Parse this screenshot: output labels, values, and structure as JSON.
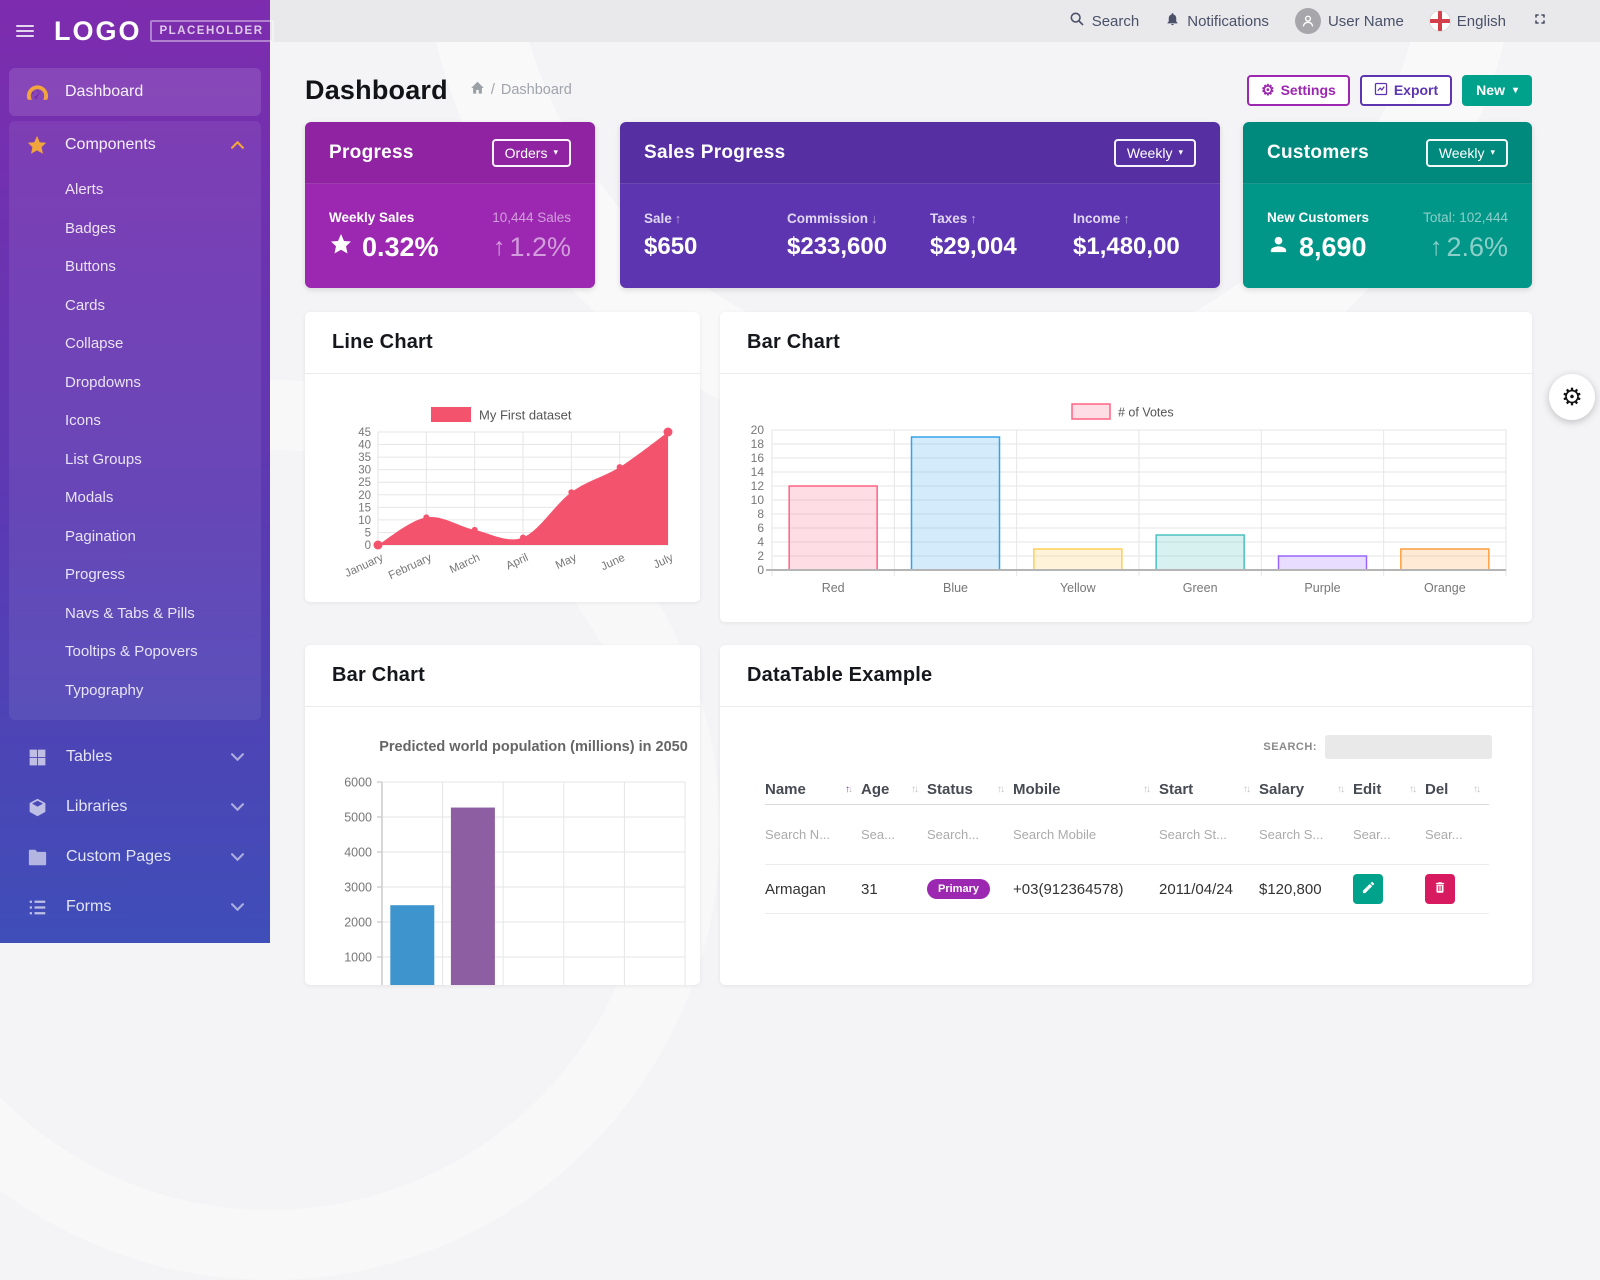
{
  "logo": {
    "text": "LOGO",
    "badge": "PLACEHOLDER"
  },
  "header": {
    "search": "Search",
    "notifications": "Notifications",
    "user_name": "User Name",
    "language": "English"
  },
  "sidebar": {
    "dashboard": "Dashboard",
    "components": "Components",
    "component_items": [
      "Alerts",
      "Badges",
      "Buttons",
      "Cards",
      "Collapse",
      "Dropdowns",
      "Icons",
      "List Groups",
      "Modals",
      "Pagination",
      "Progress",
      "Navs & Tabs & Pills",
      "Tooltips & Popovers",
      "Typography"
    ],
    "groups": [
      "Tables",
      "Libraries",
      "Custom Pages",
      "Forms"
    ]
  },
  "page": {
    "title": "Dashboard",
    "breadcrumb_sep": "/",
    "breadcrumb_current": "Dashboard",
    "settings_label": "Settings",
    "export_label": "Export",
    "new_label": "New"
  },
  "stats": {
    "progress": {
      "title": "Progress",
      "dropdown": "Orders",
      "metric_label": "Weekly Sales",
      "metric_value": "0.32%",
      "side_label": "10,444 Sales",
      "side_value": "1.2%"
    },
    "sales": {
      "title": "Sales Progress",
      "dropdown": "Weekly",
      "metrics": [
        {
          "label": "Sale",
          "dir": "up",
          "value": "$650"
        },
        {
          "label": "Commission",
          "dir": "down",
          "value": "$233,600"
        },
        {
          "label": "Taxes",
          "dir": "up",
          "value": "$29,004"
        },
        {
          "label": "Income",
          "dir": "up",
          "value": "$1,480,00"
        }
      ]
    },
    "customers": {
      "title": "Customers",
      "dropdown": "Weekly",
      "metric_label": "New Customers",
      "metric_value": "8,690",
      "side_label": "Total: 102,444",
      "side_value": "2.6%"
    }
  },
  "cards": {
    "line_title": "Line Chart",
    "votes_title": "Bar Chart",
    "pop_title": "Bar Chart",
    "table_title": "DataTable Example"
  },
  "chart_data": [
    {
      "id": "line",
      "type": "line",
      "title": "Line Chart",
      "legend": "My First dataset",
      "legend_position": "top",
      "categories": [
        "January",
        "February",
        "March",
        "April",
        "May",
        "June",
        "July"
      ],
      "values": [
        0,
        11,
        6,
        3,
        21,
        31,
        45
      ],
      "ylim": [
        0,
        45
      ],
      "ytick_step": 5,
      "grid": true,
      "color": "#f4536e"
    },
    {
      "id": "votes",
      "type": "bar",
      "title": "Bar Chart",
      "legend": "# of Votes",
      "legend_position": "top",
      "categories": [
        "Red",
        "Blue",
        "Yellow",
        "Green",
        "Purple",
        "Orange"
      ],
      "values": [
        12,
        19,
        3,
        5,
        2,
        3
      ],
      "ylim": [
        0,
        20
      ],
      "ytick_step": 2,
      "grid": true,
      "border_colors": [
        "#ff6384",
        "#36a2eb",
        "#ffce56",
        "#4bc0c0",
        "#9966ff",
        "#ff9f40"
      ],
      "fill_alpha": 0.22
    },
    {
      "id": "population",
      "type": "bar",
      "title": "Predicted world population (millions) in 2050",
      "categories": [
        "",
        ""
      ],
      "values": [
        2480,
        5270
      ],
      "ylim": [
        0,
        6000
      ],
      "ytick_step": 1000,
      "grid": true,
      "category_slots": 5,
      "colors": [
        "#3e95cd",
        "#8e5ea2"
      ],
      "note": "chart clipped by viewport bottom; only first two bars visible"
    }
  ],
  "table": {
    "search_label": "SEARCH:",
    "columns": [
      {
        "label": "Name",
        "filter": "Search N...",
        "sort": "asc"
      },
      {
        "label": "Age",
        "filter": "Sea..."
      },
      {
        "label": "Status",
        "filter": "Search..."
      },
      {
        "label": "Mobile",
        "filter": "Search Mobile"
      },
      {
        "label": "Start",
        "filter": "Search St..."
      },
      {
        "label": "Salary",
        "filter": "Search S..."
      },
      {
        "label": "Edit",
        "filter": "Sear..."
      },
      {
        "label": "Del",
        "filter": "Sear..."
      }
    ],
    "rows": [
      {
        "name": "Armagan",
        "age": "31",
        "status": "Primary",
        "mobile": "+03(912364578)",
        "start": "2011/04/24",
        "salary": "$120,800"
      }
    ]
  },
  "colors": {
    "accent_magenta": "#9c27b0",
    "accent_purple": "#5e35b1",
    "accent_teal": "#009688",
    "button_new": "#00a28b",
    "badge": "#9c27b0",
    "edit_button": "#00a28b",
    "delete_button": "#d81b60",
    "sidebar_top": "#7d2cae",
    "sidebar_bottom": "#3f4eb8",
    "icon_orange": "#f2a53c",
    "line_pink": "#f4536e"
  }
}
